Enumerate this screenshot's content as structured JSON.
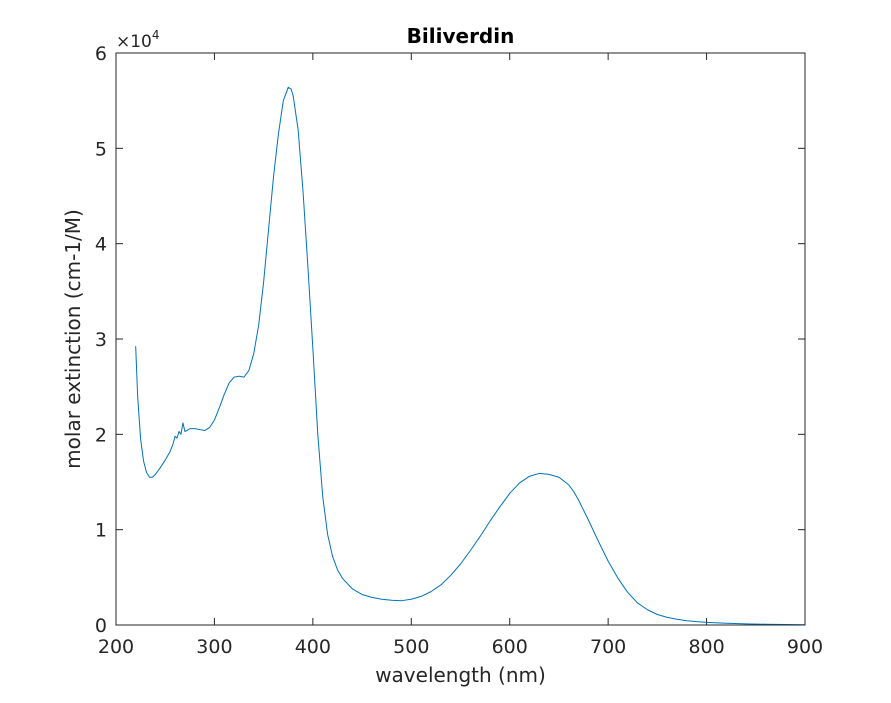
{
  "chart_data": {
    "type": "line",
    "title": "Biliverdin",
    "xlabel": "wavelength (nm)",
    "ylabel": "molar extinction (cm-1/M)",
    "xlim": [
      200,
      900
    ],
    "ylim": [
      0,
      60000
    ],
    "y_exponent_label": "×10",
    "y_exponent": "4",
    "x_ticks": [
      "200",
      "300",
      "400",
      "500",
      "600",
      "700",
      "800",
      "900"
    ],
    "x_tick_values": [
      200,
      300,
      400,
      500,
      600,
      700,
      800,
      900
    ],
    "y_ticks": [
      "0",
      "1",
      "2",
      "3",
      "4",
      "5",
      "6"
    ],
    "y_tick_values": [
      0,
      10000,
      20000,
      30000,
      40000,
      50000,
      60000
    ],
    "grid": false,
    "line_color": "#0072BD",
    "series": [
      {
        "x": [
          220,
          222,
          225,
          228,
          231,
          234,
          237,
          240,
          245,
          250,
          255,
          258,
          260,
          262,
          264,
          266,
          268,
          270,
          272,
          275,
          280,
          285,
          290,
          295,
          300,
          305,
          310,
          315,
          320,
          325,
          330,
          335,
          340,
          345,
          350,
          355,
          360,
          365,
          370,
          375,
          378,
          380,
          385,
          390,
          395,
          400,
          405,
          410,
          415,
          420,
          425,
          430,
          440,
          450,
          460,
          470,
          480,
          490,
          500,
          510,
          520,
          530,
          540,
          550,
          560,
          570,
          580,
          590,
          600,
          610,
          620,
          630,
          640,
          650,
          660,
          665,
          670,
          680,
          690,
          700,
          710,
          720,
          730,
          740,
          750,
          760,
          770,
          780,
          790,
          800,
          820,
          840,
          860,
          880,
          900
        ],
        "y": [
          29200,
          24000,
          19500,
          17200,
          16000,
          15500,
          15500,
          15800,
          16500,
          17300,
          18200,
          19000,
          19800,
          19600,
          20300,
          20000,
          21200,
          20300,
          20400,
          20600,
          20600,
          20500,
          20400,
          20700,
          21500,
          22800,
          24200,
          25400,
          26000,
          26100,
          26000,
          26700,
          28500,
          31500,
          36000,
          41500,
          47000,
          51500,
          55000,
          56400,
          56200,
          55500,
          52000,
          45500,
          37500,
          29000,
          20000,
          13500,
          9500,
          7200,
          5800,
          4900,
          3800,
          3200,
          2900,
          2700,
          2600,
          2550,
          2700,
          3000,
          3500,
          4200,
          5200,
          6400,
          7800,
          9300,
          10900,
          12400,
          13800,
          14900,
          15600,
          15900,
          15800,
          15500,
          14700,
          14000,
          13100,
          11000,
          8800,
          6700,
          4900,
          3400,
          2300,
          1600,
          1100,
          800,
          600,
          450,
          350,
          280,
          180,
          120,
          80,
          50,
          30
        ]
      }
    ]
  }
}
